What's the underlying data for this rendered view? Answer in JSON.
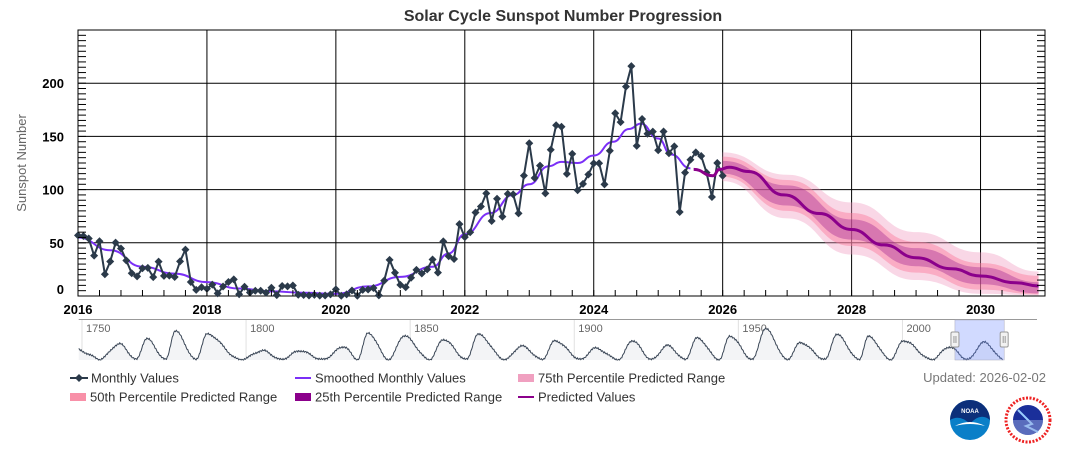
{
  "chart_data": {
    "type": "line",
    "title": "Solar Cycle Sunspot Number Progression",
    "ylabel": "Sunspot Number",
    "xlabel": "",
    "xlim": [
      2016,
      2031
    ],
    "ylim": [
      0,
      250
    ],
    "x_ticks": [
      "2016",
      "2018",
      "2020",
      "2022",
      "2024",
      "2026",
      "2028",
      "2030"
    ],
    "y_ticks": [
      "0",
      "50",
      "100",
      "150",
      "200"
    ],
    "grid": true,
    "legend_position": "bottom-left",
    "colors": {
      "monthly": "#2b3a4a",
      "smoothed": "#7b2ff7",
      "predicted": "#8b008b",
      "p75": "#f0a0c0",
      "p50": "#f890a8",
      "p25": "#8b008b"
    },
    "series": [
      {
        "name": "Monthly Values",
        "start": 2016.0,
        "step_months": 1,
        "values": [
          57.0,
          56.4,
          54.1,
          37.9,
          51.5,
          20.5,
          32.4,
          50.2,
          44.6,
          33.4,
          21.4,
          18.5,
          26.1,
          26.4,
          17.7,
          32.3,
          18.9,
          19.2,
          17.8,
          32.6,
          43.6,
          13.2,
          5.7,
          8.2,
          6.8,
          10.7,
          2.5,
          8.9,
          13.1,
          15.6,
          1.6,
          8.7,
          3.3,
          4.9,
          4.9,
          3.1,
          7.7,
          0.8,
          9.4,
          9.1,
          9.9,
          1.2,
          0.9,
          0.5,
          1.1,
          0.4,
          0.5,
          1.5,
          6.2,
          0.2,
          1.5,
          5.2,
          0.2,
          5.8,
          6.1,
          7.5,
          0.6,
          14.4,
          34.0,
          21.8,
          10.4,
          8.2,
          17.2,
          24.5,
          21.2,
          25.0,
          34.3,
          22.0,
          51.3,
          37.4,
          34.8,
          67.5,
          55.3,
          59.9,
          78.5,
          84.1,
          96.5,
          70.5,
          91.4,
          74.6,
          96.0,
          95.5,
          77.6,
          113.1,
          143.6,
          110.9,
          122.5,
          96.4,
          137.4,
          160.5,
          159.1,
          114.8,
          133.6,
          99.4,
          105.4,
          114.2,
          124.7,
          124.8,
          104.9,
          136.5,
          171.7,
          163.4,
          196.8,
          216.0,
          141.1,
          166.4,
          152.5,
          154.5,
          137.0,
          154.6,
          134.2,
          140.6,
          79.0,
          116.0,
          128.0,
          135.0,
          131.6,
          116.0,
          93.0,
          125.0,
          113.0
        ]
      },
      {
        "name": "Smoothed Monthly Values",
        "points": [
          [
            2016.0,
            55
          ],
          [
            2016.5,
            43
          ],
          [
            2017.0,
            27.5
          ],
          [
            2017.5,
            21
          ],
          [
            2018.0,
            13
          ],
          [
            2018.5,
            7
          ],
          [
            2019.0,
            4.4
          ],
          [
            2019.5,
            3
          ],
          [
            2020.0,
            2
          ],
          [
            2020.5,
            9
          ],
          [
            2021.0,
            18
          ],
          [
            2021.5,
            27.5
          ],
          [
            2021.75,
            40
          ],
          [
            2022.0,
            58
          ],
          [
            2022.4,
            78
          ],
          [
            2022.75,
            95
          ],
          [
            2023.0,
            105
          ],
          [
            2023.3,
            122
          ],
          [
            2023.5,
            126
          ],
          [
            2023.75,
            125
          ],
          [
            2024.0,
            132
          ],
          [
            2024.3,
            145
          ],
          [
            2024.55,
            157
          ],
          [
            2024.73,
            162
          ],
          [
            2025.0,
            148
          ],
          [
            2025.2,
            133
          ],
          [
            2025.5,
            120
          ]
        ]
      },
      {
        "name": "Predicted Values",
        "points": [
          [
            2025.55,
            119
          ],
          [
            2025.85,
            113
          ],
          [
            2025.95,
            119
          ],
          [
            2026.1,
            121
          ],
          [
            2026.4,
            117
          ],
          [
            2026.95,
            95
          ],
          [
            2027.5,
            77.5
          ],
          [
            2028.0,
            62.5
          ],
          [
            2028.5,
            48
          ],
          [
            2029.0,
            36
          ],
          [
            2029.55,
            25.6
          ],
          [
            2030.0,
            18.8
          ],
          [
            2030.55,
            12.5
          ],
          [
            2030.9,
            9.4
          ]
        ]
      },
      {
        "name": "75th Percentile Predicted Range",
        "x": [
          2026.0,
          2027.0,
          2028.0,
          2029.0,
          2030.0,
          2030.9
        ],
        "lower": [
          108,
          73,
          39,
          15,
          2,
          0.6
        ],
        "upper": [
          135,
          114,
          88,
          60,
          41,
          23
        ]
      },
      {
        "name": "50th Percentile Predicted Range",
        "x": [
          2026.0,
          2027.0,
          2028.0,
          2029.0,
          2030.0,
          2030.9
        ],
        "lower": [
          112,
          80,
          47,
          22,
          6,
          1.5
        ],
        "upper": [
          131,
          109,
          78,
          51,
          31,
          19
        ]
      },
      {
        "name": "25th Percentile Predicted Range",
        "x": [
          2026.0,
          2027.0,
          2028.0,
          2029.0,
          2030.0,
          2030.9
        ],
        "lower": [
          115,
          85,
          53,
          28,
          11,
          2.5
        ],
        "upper": [
          127,
          104,
          72,
          45,
          27,
          13
        ]
      }
    ],
    "navigator": {
      "range": [
        1749,
        2041
      ],
      "labels": [
        "1750",
        "1800",
        "1850",
        "1900",
        "1950",
        "2000"
      ],
      "selection": [
        2016,
        2031
      ],
      "cycles": [
        [
          1755.2,
          1761.5,
          144
        ],
        [
          1766.5,
          1769.7,
          193
        ],
        [
          1775.5,
          1778.4,
          264
        ],
        [
          1784.7,
          1788.1,
          235
        ],
        [
          1798.3,
          1805.2,
          82
        ],
        [
          1810.6,
          1816.4,
          81
        ],
        [
          1823.3,
          1829.9,
          119
        ],
        [
          1833.9,
          1837.2,
          245
        ],
        [
          1843.5,
          1848.1,
          220
        ],
        [
          1855.9,
          1860.1,
          186
        ],
        [
          1867.2,
          1870.6,
          234
        ],
        [
          1878.9,
          1884.0,
          125
        ],
        [
          1890.2,
          1894.1,
          173
        ],
        [
          1902.1,
          1906.2,
          105
        ],
        [
          1913.6,
          1917.6,
          176
        ],
        [
          1923.6,
          1928.4,
          130
        ],
        [
          1933.8,
          1937.4,
          199
        ],
        [
          1944.2,
          1947.4,
          218
        ],
        [
          1954.3,
          1958.2,
          285
        ],
        [
          1964.9,
          1968.9,
          156
        ],
        [
          1976.5,
          1979.9,
          233
        ],
        [
          1986.8,
          1989.6,
          213
        ],
        [
          1996.4,
          2000.3,
          175
        ],
        [
          2008.9,
          2014.3,
          116
        ],
        [
          2019.9,
          2024.8,
          160
        ],
        [
          2030.9,
          2036,
          0
        ]
      ]
    }
  },
  "legend": [
    {
      "label": "Monthly Values"
    },
    {
      "label": "Smoothed Monthly Values"
    },
    {
      "label": "75th Percentile Predicted Range"
    },
    {
      "label": "50th Percentile Predicted Range"
    },
    {
      "label": "25th Percentile Predicted Range"
    },
    {
      "label": "Predicted Values"
    }
  ],
  "updated": "Updated: 2026-02-02",
  "logos": {
    "noaa": "NOAA",
    "nws": "NATIONAL WEATHER SERVICE"
  }
}
